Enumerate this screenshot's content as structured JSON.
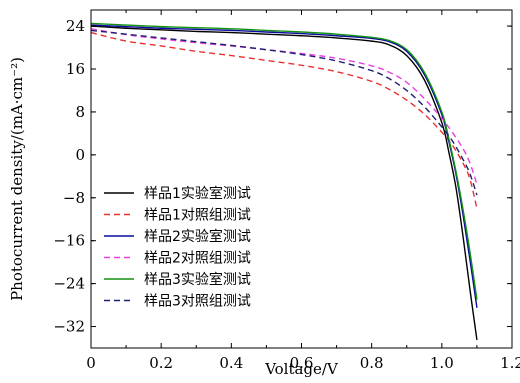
{
  "chart_data": {
    "type": "line",
    "title": "",
    "xlabel": "Voltage/V",
    "ylabel": "Photocurrent density/(mA·cm⁻²)",
    "xlim": [
      0,
      1.2
    ],
    "ylim": [
      -36,
      27
    ],
    "xticks": [
      0,
      0.2,
      0.4,
      0.6,
      0.8,
      1.0,
      1.2
    ],
    "xtick_labels": [
      "0",
      "0.2",
      "0.4",
      "0.6",
      "0.8",
      "1.0",
      "1.2"
    ],
    "yticks": [
      24,
      16,
      8,
      0,
      -8,
      -16,
      -24,
      -32
    ],
    "ytick_labels": [
      "24",
      "16",
      "8",
      "0",
      "−8",
      "−16",
      "−24",
      "−32"
    ],
    "grid": false,
    "legend_position": "bottom-left",
    "series": [
      {
        "name": "样品1实验室测试",
        "color": "#000000",
        "dash": "solid",
        "x": [
          0,
          0.1,
          0.2,
          0.3,
          0.4,
          0.5,
          0.6,
          0.7,
          0.8,
          0.85,
          0.9,
          0.95,
          1.0,
          1.02,
          1.04,
          1.06,
          1.08,
          1.1
        ],
        "y": [
          24.0,
          23.6,
          23.3,
          23.0,
          22.8,
          22.5,
          22.2,
          21.8,
          21.2,
          20.5,
          18.5,
          14.0,
          6.0,
          0.5,
          -6.0,
          -15.0,
          -25.0,
          -34.5
        ]
      },
      {
        "name": "样品1对照组测试",
        "color": "#e8322f",
        "dash": "dashed",
        "x": [
          0,
          0.1,
          0.2,
          0.3,
          0.4,
          0.5,
          0.6,
          0.7,
          0.8,
          0.85,
          0.9,
          0.95,
          1.0,
          1.03,
          1.06,
          1.08,
          1.1
        ],
        "y": [
          22.8,
          21.2,
          20.3,
          19.3,
          18.5,
          17.6,
          16.7,
          15.5,
          13.7,
          12.2,
          10.2,
          7.6,
          4.2,
          1.8,
          -1.5,
          -4.5,
          -10.0
        ]
      },
      {
        "name": "样品2实验室测试",
        "color": "#0b0b9e",
        "dash": "solid",
        "x": [
          0,
          0.1,
          0.2,
          0.3,
          0.4,
          0.5,
          0.6,
          0.7,
          0.8,
          0.85,
          0.9,
          0.95,
          1.0,
          1.02,
          1.04,
          1.06,
          1.08,
          1.1
        ],
        "y": [
          24.2,
          23.9,
          23.6,
          23.4,
          23.2,
          22.9,
          22.6,
          22.2,
          21.7,
          21.1,
          19.3,
          15.0,
          7.5,
          2.5,
          -3.5,
          -11.0,
          -19.5,
          -28.5
        ]
      },
      {
        "name": "样品2对照组测试",
        "color": "#e83fe0",
        "dash": "dashed",
        "x": [
          0,
          0.1,
          0.2,
          0.3,
          0.4,
          0.5,
          0.6,
          0.7,
          0.8,
          0.85,
          0.9,
          0.95,
          1.0,
          1.03,
          1.06,
          1.08,
          1.1
        ],
        "y": [
          23.5,
          22.4,
          21.6,
          20.9,
          20.3,
          19.6,
          18.9,
          18.0,
          16.6,
          15.4,
          13.5,
          10.5,
          6.8,
          4.2,
          1.2,
          -1.5,
          -5.5
        ]
      },
      {
        "name": "样品3实验室测试",
        "color": "#149114",
        "dash": "solid",
        "x": [
          0,
          0.1,
          0.2,
          0.3,
          0.4,
          0.5,
          0.6,
          0.7,
          0.8,
          0.85,
          0.9,
          0.95,
          1.0,
          1.02,
          1.04,
          1.06,
          1.08,
          1.1
        ],
        "y": [
          24.5,
          24.2,
          23.9,
          23.7,
          23.5,
          23.2,
          22.9,
          22.5,
          21.9,
          21.3,
          19.6,
          15.4,
          8.0,
          3.0,
          -3.0,
          -10.0,
          -18.0,
          -27.0
        ]
      },
      {
        "name": "样品3对照组测试",
        "color": "#202070",
        "dash": "dashed",
        "x": [
          0,
          0.1,
          0.2,
          0.3,
          0.4,
          0.5,
          0.6,
          0.7,
          0.8,
          0.85,
          0.9,
          0.95,
          1.0,
          1.03,
          1.06,
          1.08,
          1.1
        ],
        "y": [
          23.2,
          22.5,
          21.8,
          21.1,
          20.4,
          19.6,
          18.7,
          17.5,
          15.7,
          14.2,
          12.0,
          9.0,
          5.2,
          2.6,
          -0.8,
          -3.5,
          -7.5
        ]
      }
    ]
  }
}
